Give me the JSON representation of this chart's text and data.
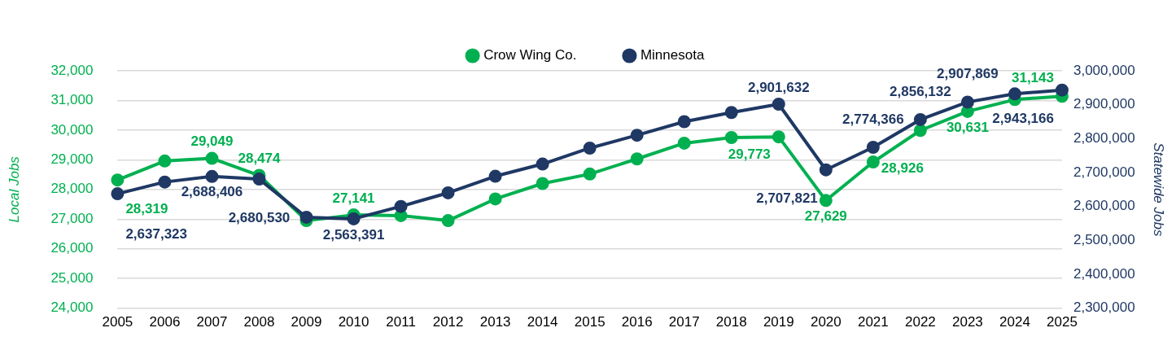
{
  "chart_data": {
    "type": "line",
    "categories": [
      "2005",
      "2006",
      "2007",
      "2008",
      "2009",
      "2010",
      "2011",
      "2012",
      "2013",
      "2014",
      "2015",
      "2016",
      "2017",
      "2018",
      "2019",
      "2020",
      "2021",
      "2022",
      "2023",
      "2024",
      "2025"
    ],
    "series": [
      {
        "name": "Crow Wing Co.",
        "color": "#00b050",
        "values": [
          28319,
          28960,
          29049,
          28474,
          26950,
          27141,
          27120,
          26950,
          27680,
          28200,
          28520,
          29030,
          29560,
          29750,
          29773,
          27629,
          28926,
          29990,
          30631,
          31030,
          31143
        ],
        "value_labels": [
          "28,319",
          null,
          "29,049",
          "28,474",
          null,
          "27,141",
          null,
          null,
          null,
          null,
          null,
          null,
          null,
          null,
          "29,773",
          "27,629",
          "28,926",
          null,
          "30,631",
          null,
          "31,143"
        ]
      },
      {
        "name": "Minnesota",
        "color": "#1f3864",
        "axis": "y2",
        "values": [
          2637323,
          2672000,
          2688406,
          2680530,
          2568000,
          2563391,
          2600000,
          2640000,
          2689000,
          2725000,
          2772000,
          2810000,
          2850000,
          2877000,
          2901632,
          2707821,
          2774366,
          2856132,
          2907869,
          2932000,
          2943166
        ],
        "value_labels": [
          "2,637,323",
          null,
          "2,688,406",
          "2,680,530",
          null,
          "2,563,391",
          null,
          null,
          null,
          null,
          null,
          null,
          null,
          null,
          "2,901,632",
          "2,707,821",
          "2,774,366",
          "2,856,132",
          "2,907,869",
          null,
          "2,943,166"
        ]
      }
    ],
    "ylabel": "Local Jobs",
    "y2label": "Statewide Jobs",
    "ylim": [
      24000,
      32000
    ],
    "yticks": [
      {
        "value": 24000,
        "label": "24,000"
      },
      {
        "value": 25000,
        "label": "25,000"
      },
      {
        "value": 26000,
        "label": "26,000"
      },
      {
        "value": 27000,
        "label": "27,000"
      },
      {
        "value": 28000,
        "label": "28,000"
      },
      {
        "value": 29000,
        "label": "29,000"
      },
      {
        "value": 30000,
        "label": "30,000"
      },
      {
        "value": 31000,
        "label": "31,000"
      },
      {
        "value": 32000,
        "label": "32,000"
      }
    ],
    "y2lim": [
      2300000,
      3000000
    ],
    "y2ticks": [
      {
        "value": 2300000,
        "label": "2,300,000"
      },
      {
        "value": 2400000,
        "label": "2,400,000"
      },
      {
        "value": 2500000,
        "label": "2,500,000"
      },
      {
        "value": 2600000,
        "label": "2,600,000"
      },
      {
        "value": 2700000,
        "label": "2,700,000"
      },
      {
        "value": 2800000,
        "label": "2,800,000"
      },
      {
        "value": 2900000,
        "label": "2,900,000"
      },
      {
        "value": 3000000,
        "label": "3,000,000"
      }
    ],
    "grid": "y",
    "legend": "top",
    "marker": "circle"
  }
}
